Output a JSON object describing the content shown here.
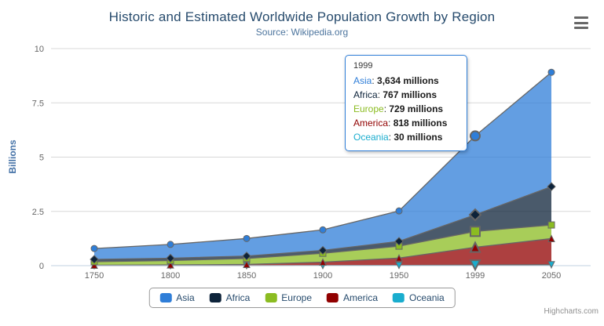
{
  "header": {
    "title": "Historic and Estimated Worldwide Population Growth by Region",
    "subtitle": "Source: Wikipedia.org"
  },
  "icons": {
    "export_menu": "hamburger-icon"
  },
  "chart_data": {
    "type": "area",
    "stacking": "normal",
    "title": "Historic and Estimated Worldwide Population Growth by Region",
    "subtitle": "Source: Wikipedia.org",
    "xlabel": "",
    "ylabel": "Billions",
    "value_unit": "millions",
    "ylim": [
      0,
      10
    ],
    "yticks": [
      0,
      2.5,
      5,
      7.5,
      10
    ],
    "ytick_labels": [
      "0",
      "2.5",
      "5",
      "7.5",
      "10"
    ],
    "grid": true,
    "legend_position": "bottom",
    "categories": [
      "1750",
      "1800",
      "1850",
      "1900",
      "1950",
      "1999",
      "2050"
    ],
    "series": [
      {
        "name": "Asia",
        "color": "#2f7ed8",
        "marker": "circle",
        "values": [
          502,
          635,
          809,
          947,
          1402,
          3634,
          5268
        ]
      },
      {
        "name": "Africa",
        "color": "#0d233a",
        "marker": "diamond",
        "values": [
          106,
          107,
          111,
          133,
          221,
          767,
          1766
        ]
      },
      {
        "name": "Europe",
        "color": "#8bbc21",
        "marker": "square",
        "values": [
          163,
          203,
          276,
          408,
          547,
          729,
          628
        ]
      },
      {
        "name": "America",
        "color": "#910000",
        "marker": "triangle",
        "values": [
          18,
          31,
          54,
          156,
          339,
          818,
          1201
        ]
      },
      {
        "name": "Oceania",
        "color": "#1aadce",
        "marker": "triangle-down",
        "values": [
          2,
          2,
          2,
          6,
          13,
          30,
          46
        ]
      }
    ],
    "hover": {
      "category": "1999",
      "index": 5
    }
  },
  "tooltip": {
    "header": "1999",
    "rows": [
      {
        "name": "Asia",
        "color": "#2f7ed8",
        "value": "3,634",
        "suffix": " millions"
      },
      {
        "name": "Africa",
        "color": "#0d233a",
        "value": "767",
        "suffix": " millions"
      },
      {
        "name": "Europe",
        "color": "#8bbc21",
        "value": "729",
        "suffix": " millions"
      },
      {
        "name": "America",
        "color": "#910000",
        "value": "818",
        "suffix": " millions"
      },
      {
        "name": "Oceania",
        "color": "#1aadce",
        "value": "30",
        "suffix": " millions"
      }
    ]
  },
  "credits": {
    "text": "Highcharts.com"
  },
  "style_colors": {
    "line": "#666666",
    "grid": "#d8d8d8",
    "axis_line": "#c0d0e0",
    "axis_label": "#666666",
    "fill_opacity": "0.75"
  }
}
